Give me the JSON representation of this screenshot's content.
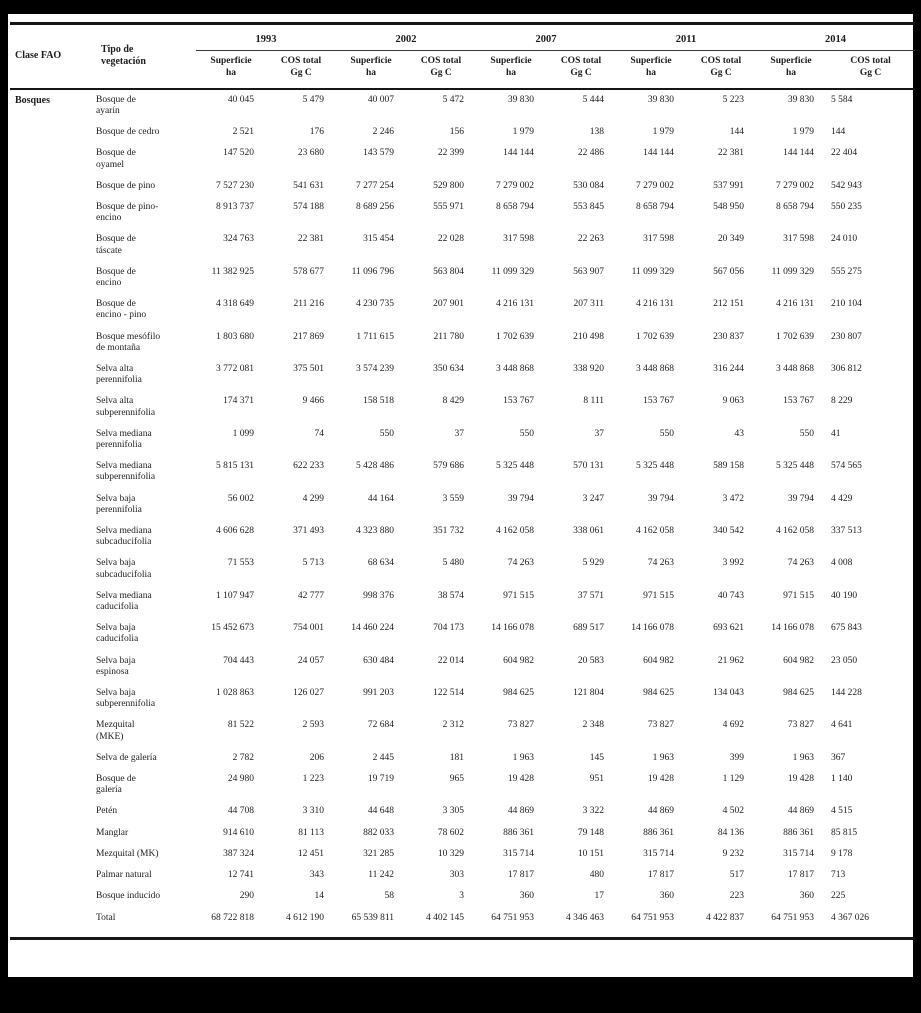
{
  "table": {
    "col1_header": "Clase FAO",
    "col2_header": "Tipo de\nvegetación",
    "years": [
      "1993",
      "2002",
      "2007",
      "2011",
      "2014"
    ],
    "subheaders": {
      "superficie": "Superficie\nha",
      "cos": "COS total\nGg C"
    },
    "group_label": "Bosques",
    "rows": [
      {
        "label": "Bosque de\nayarín",
        "values": [
          "40 045",
          "5 479",
          "40 007",
          "5 472",
          "39 830",
          "5 444",
          "39 830",
          "5 223",
          "39 830",
          "5 584"
        ]
      },
      {
        "label": "Bosque de cedro",
        "values": [
          "2 521",
          "176",
          "2 246",
          "156",
          "1 979",
          "138",
          "1 979",
          "144",
          "1 979",
          "144"
        ]
      },
      {
        "label": "Bosque de\noyamel",
        "values": [
          "147 520",
          "23 680",
          "143 579",
          "22 399",
          "144 144",
          "22 486",
          "144 144",
          "22 381",
          "144 144",
          "22 404"
        ]
      },
      {
        "label": "Bosque de pino",
        "values": [
          "7 527 230",
          "541 631",
          "7 277 254",
          "529 800",
          "7 279 002",
          "530 084",
          "7 279 002",
          "537 991",
          "7 279 002",
          "542 943"
        ]
      },
      {
        "label": "Bosque de pino-\nencino",
        "values": [
          "8 913 737",
          "574 188",
          "8 689 256",
          "555 971",
          "8 658 794",
          "553 845",
          "8 658 794",
          "548 950",
          "8 658 794",
          "550 235"
        ]
      },
      {
        "label": "Bosque de\ntáscate",
        "values": [
          "324 763",
          "22 381",
          "315 454",
          "22 028",
          "317 598",
          "22 263",
          "317 598",
          "20 349",
          "317 598",
          "24 010"
        ]
      },
      {
        "label": "Bosque de\nencino",
        "values": [
          "11 382 925",
          "578 677",
          "11 096 796",
          "563 804",
          "11 099 329",
          "563 907",
          "11 099 329",
          "567 056",
          "11 099 329",
          "555 275"
        ]
      },
      {
        "label": "Bosque de\nencino - pino",
        "values": [
          "4 318 649",
          "211 216",
          "4 230 735",
          "207 901",
          "4 216 131",
          "207 311",
          "4 216 131",
          "212 151",
          "4 216 131",
          "210 104"
        ]
      },
      {
        "label": "Bosque mesófilo\nde montaña",
        "values": [
          "1 803 680",
          "217 869",
          "1 711 615",
          "211 780",
          "1 702 639",
          "210 498",
          "1 702 639",
          "230 837",
          "1 702 639",
          "230 807"
        ]
      },
      {
        "label": "Selva alta\nperennifolia",
        "values": [
          "3 772 081",
          "375 501",
          "3 574 239",
          "350 634",
          "3 448 868",
          "338 920",
          "3 448 868",
          "316 244",
          "3 448 868",
          "306 812"
        ]
      },
      {
        "label": "Selva alta\nsubperennifolia",
        "values": [
          "174 371",
          "9 466",
          "158 518",
          "8 429",
          "153 767",
          "8 111",
          "153 767",
          "9 063",
          "153 767",
          "8 229"
        ]
      },
      {
        "label": "Selva mediana\nperennifolia",
        "values": [
          "1 099",
          "74",
          "550",
          "37",
          "550",
          "37",
          "550",
          "43",
          "550",
          "41"
        ]
      },
      {
        "label": "Selva mediana\nsubperennifolia",
        "values": [
          "5 815 131",
          "622 233",
          "5 428 486",
          "579 686",
          "5 325 448",
          "570 131",
          "5 325 448",
          "589 158",
          "5 325 448",
          "574 565"
        ]
      },
      {
        "label": "Selva baja\nperennifolia",
        "values": [
          "56 002",
          "4 299",
          "44 164",
          "3 559",
          "39 794",
          "3 247",
          "39 794",
          "3 472",
          "39 794",
          "4 429"
        ]
      },
      {
        "label": "Selva mediana\nsubcaducifolia",
        "values": [
          "4 606 628",
          "371 493",
          "4 323 880",
          "351 732",
          "4 162 058",
          "338 061",
          "4 162 058",
          "340 542",
          "4 162 058",
          "337 513"
        ]
      },
      {
        "label": "Selva baja\nsubcaducifolia",
        "values": [
          "71 553",
          "5 713",
          "68 634",
          "5 480",
          "74 263",
          "5 929",
          "74 263",
          "3 992",
          "74 263",
          "4 008"
        ]
      },
      {
        "label": "Selva mediana\ncaducifolia",
        "values": [
          "1 107 947",
          "42 777",
          "998 376",
          "38 574",
          "971 515",
          "37 571",
          "971 515",
          "40 743",
          "971 515",
          "40 190"
        ]
      },
      {
        "label": "Selva baja\ncaducifolia",
        "values": [
          "15 452 673",
          "754 001",
          "14 460 224",
          "704 173",
          "14 166 078",
          "689 517",
          "14 166 078",
          "693 621",
          "14 166 078",
          "675 843"
        ]
      },
      {
        "label": "Selva baja\nespinosa",
        "values": [
          "704 443",
          "24 057",
          "630 484",
          "22 014",
          "604 982",
          "20 583",
          "604 982",
          "21 962",
          "604 982",
          "23 050"
        ]
      },
      {
        "label": "Selva baja\nsubperennifolia",
        "values": [
          "1 028 863",
          "126 027",
          "991 203",
          "122 514",
          "984 625",
          "121 804",
          "984 625",
          "134 043",
          "984 625",
          "144 228"
        ]
      },
      {
        "label": "Mezquital\n(MKE)",
        "values": [
          "81 522",
          "2 593",
          "72 684",
          "2 312",
          "73 827",
          "2 348",
          "73 827",
          "4 692",
          "73 827",
          "4 641"
        ]
      },
      {
        "label": "Selva de galería",
        "values": [
          "2 782",
          "206",
          "2 445",
          "181",
          "1 963",
          "145",
          "1 963",
          "399",
          "1 963",
          "367"
        ]
      },
      {
        "label": "Bosque de\ngalería",
        "values": [
          "24 980",
          "1 223",
          "19 719",
          "965",
          "19 428",
          "951",
          "19 428",
          "1 129",
          "19 428",
          "1 140"
        ]
      },
      {
        "label": "Petén",
        "values": [
          "44 708",
          "3 310",
          "44 648",
          "3 305",
          "44 869",
          "3 322",
          "44 869",
          "4 502",
          "44 869",
          "4 515"
        ]
      },
      {
        "label": "Manglar",
        "values": [
          "914 610",
          "81 113",
          "882 033",
          "78 602",
          "886 361",
          "79 148",
          "886 361",
          "84 136",
          "886 361",
          "85 815"
        ]
      },
      {
        "label": "Mezquital (MK)",
        "values": [
          "387 324",
          "12 451",
          "321 285",
          "10 329",
          "315 714",
          "10 151",
          "315 714",
          "9 232",
          "315 714",
          "9 178"
        ]
      },
      {
        "label": "Palmar natural",
        "values": [
          "12 741",
          "343",
          "11 242",
          "303",
          "17 817",
          "480",
          "17 817",
          "517",
          "17 817",
          "713"
        ]
      },
      {
        "label": "Bosque inducido",
        "values": [
          "290",
          "14",
          "58",
          "3",
          "360",
          "17",
          "360",
          "223",
          "360",
          "225"
        ]
      }
    ],
    "total": {
      "label": "Total",
      "values": [
        "68 722 818",
        "4 612 190",
        "65 539 811",
        "4 402 145",
        "64 751 953",
        "4 346 463",
        "64 751 953",
        "4 422 837",
        "64 751 953",
        "4 367 026"
      ]
    }
  }
}
